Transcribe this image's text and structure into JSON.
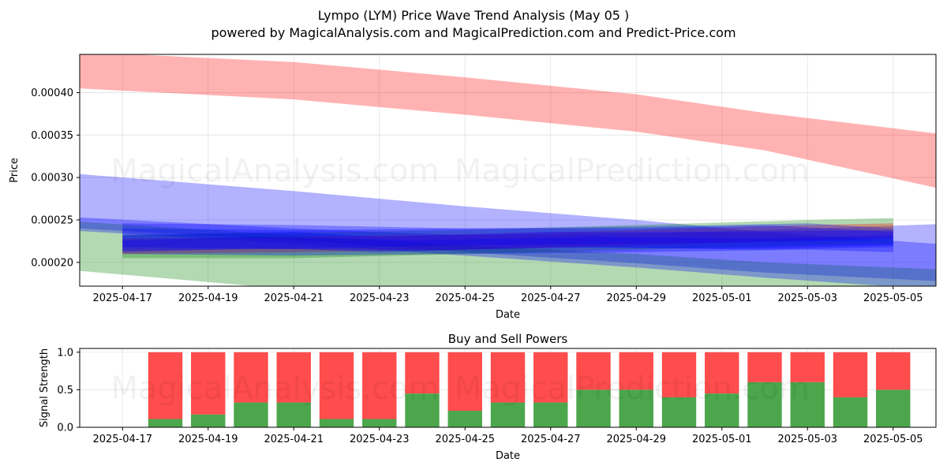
{
  "title_line1": "Lympo (LYM) Price Wave Trend Analysis (May 05 )",
  "title_line2": "powered by MagicalAnalysis.com and MagicalPrediction.com and Predict-Price.com",
  "watermarks": [
    "MagicalAnalysis.com",
    "MagicalPrediction.com"
  ],
  "colors": {
    "red": "#ff0000",
    "blue": "#0000ff",
    "green": "#008000",
    "buy": "#4ca64c",
    "sell": "#ff4c4c"
  },
  "chart_data": [
    {
      "type": "area",
      "name": "price-wave-chart",
      "xlabel": "Date",
      "ylabel": "Price",
      "xlim": [
        "2025-04-16",
        "2025-05-06"
      ],
      "ylim": [
        0.000172,
        0.000445
      ],
      "x_ticks": [
        "2025-04-17",
        "2025-04-19",
        "2025-04-21",
        "2025-04-23",
        "2025-04-25",
        "2025-04-27",
        "2025-04-29",
        "2025-05-01",
        "2025-05-03",
        "2025-05-05"
      ],
      "y_ticks": [
        "0.00020",
        "0.00025",
        "0.00030",
        "0.00035",
        "0.00040"
      ],
      "grid": true,
      "bands": [
        {
          "color": "red",
          "x": [
            "2025-04-16",
            "2025-04-21",
            "2025-04-25",
            "2025-04-29",
            "2025-05-02",
            "2025-05-06"
          ],
          "upper": [
            0.000448,
            0.000436,
            0.000418,
            0.000398,
            0.000376,
            0.000352
          ],
          "lower": [
            0.000405,
            0.000392,
            0.000374,
            0.000354,
            0.000332,
            0.000288
          ]
        },
        {
          "color": "blue",
          "x": [
            "2025-04-16",
            "2025-04-21",
            "2025-04-25",
            "2025-04-29",
            "2025-05-02",
            "2025-05-06"
          ],
          "upper": [
            0.000304,
            0.000284,
            0.000266,
            0.00025,
            0.000236,
            0.000222
          ],
          "lower": [
            0.00024,
            0.000226,
            0.000212,
            0.000199,
            0.000188,
            0.000178
          ]
        },
        {
          "color": "green",
          "x": [
            "2025-04-16",
            "2025-04-21",
            "2025-04-25",
            "2025-04-29",
            "2025-05-02",
            "2025-05-06"
          ],
          "upper": [
            0.000248,
            0.000232,
            0.00022,
            0.00021,
            0.0002,
            0.000192
          ],
          "lower": [
            0.00019,
            0.000168,
            0.00015,
            0.000135,
            0.000122,
            0.00011
          ]
        },
        {
          "color": "blue",
          "x": [
            "2025-04-16",
            "2025-04-21",
            "2025-04-25",
            "2025-04-29",
            "2025-05-02",
            "2025-05-06"
          ],
          "upper": [
            0.000253,
            0.00024,
            0.000232,
            0.000234,
            0.000238,
            0.000245
          ],
          "lower": [
            0.000237,
            0.000222,
            0.000208,
            0.000194,
            0.000182,
            0.000168
          ]
        },
        {
          "color": "green",
          "x": [
            "2025-04-17",
            "2025-04-21",
            "2025-04-25",
            "2025-04-29",
            "2025-05-03",
            "2025-05-05"
          ],
          "upper": [
            0.000232,
            0.000235,
            0.000238,
            0.000244,
            0.00025,
            0.000252
          ],
          "lower": [
            0.000205,
            0.000205,
            0.00021,
            0.000215,
            0.00022,
            0.000222
          ]
        },
        {
          "color": "red",
          "x": [
            "2025-04-17",
            "2025-04-21",
            "2025-04-25",
            "2025-04-29",
            "2025-05-03",
            "2025-05-05"
          ],
          "upper": [
            0.000228,
            0.00023,
            0.000233,
            0.000238,
            0.000244,
            0.000246
          ],
          "lower": [
            0.00021,
            0.000212,
            0.000215,
            0.00022,
            0.000226,
            0.000228
          ]
        },
        {
          "color": "blue",
          "x": [
            "2025-04-17",
            "2025-04-21",
            "2025-04-25",
            "2025-04-29",
            "2025-05-03",
            "2025-05-05"
          ],
          "upper": [
            0.00024,
            0.000238,
            0.00024,
            0.000242,
            0.000246,
            0.00024
          ],
          "lower": [
            0.00021,
            0.000208,
            0.00021,
            0.000212,
            0.000215,
            0.000212
          ]
        },
        {
          "color": "blue",
          "x": [
            "2025-04-17",
            "2025-04-21",
            "2025-04-23",
            "2025-04-27",
            "2025-05-01",
            "2025-05-05"
          ],
          "upper": [
            0.000232,
            0.000236,
            0.00023,
            0.000236,
            0.000236,
            0.000238
          ],
          "lower": [
            0.000214,
            0.000216,
            0.000212,
            0.000218,
            0.000216,
            0.00022
          ]
        },
        {
          "color": "blue",
          "x": [
            "2025-04-17",
            "2025-04-20",
            "2025-04-24",
            "2025-04-28",
            "2025-05-02",
            "2025-05-05"
          ],
          "upper": [
            0.000226,
            0.00023,
            0.000226,
            0.00023,
            0.000228,
            0.000232
          ],
          "lower": [
            0.000212,
            0.000216,
            0.000214,
            0.000218,
            0.000215,
            0.000218
          ]
        },
        {
          "color": "blue",
          "x": [
            "2025-04-17",
            "2025-04-21",
            "2025-04-25",
            "2025-04-29",
            "2025-05-02",
            "2025-05-05"
          ],
          "upper": [
            0.000246,
            0.000244,
            0.00024,
            0.00024,
            0.000244,
            0.000236
          ],
          "lower": [
            0.000218,
            0.000216,
            0.00022,
            0.000222,
            0.000224,
            0.000226
          ]
        }
      ]
    },
    {
      "type": "bar",
      "name": "buy-sell-powers-chart",
      "title": "Buy and Sell Powers",
      "xlabel": "Date",
      "ylabel": "Signal Strength",
      "xlim": [
        "2025-04-16",
        "2025-05-06"
      ],
      "ylim": [
        0,
        1.05
      ],
      "x_ticks": [
        "2025-04-17",
        "2025-04-19",
        "2025-04-21",
        "2025-04-23",
        "2025-04-25",
        "2025-04-27",
        "2025-04-29",
        "2025-05-01",
        "2025-05-03",
        "2025-05-05"
      ],
      "y_ticks": [
        "0.0",
        "0.5",
        "1.0"
      ],
      "grid": true,
      "categories": [
        "2025-04-18",
        "2025-04-19",
        "2025-04-20",
        "2025-04-21",
        "2025-04-22",
        "2025-04-23",
        "2025-04-24",
        "2025-04-25",
        "2025-04-26",
        "2025-04-27",
        "2025-04-28",
        "2025-04-29",
        "2025-04-30",
        "2025-05-01",
        "2025-05-02",
        "2025-05-03",
        "2025-05-04",
        "2025-05-05"
      ],
      "series": [
        {
          "color": "buy",
          "values": [
            0.11,
            0.17,
            0.33,
            0.33,
            0.11,
            0.11,
            0.45,
            0.22,
            0.33,
            0.33,
            0.5,
            0.5,
            0.4,
            0.45,
            0.6,
            0.6,
            0.4,
            0.5
          ]
        },
        {
          "color": "sell",
          "values": [
            0.89,
            0.83,
            0.67,
            0.67,
            0.89,
            0.89,
            0.55,
            0.78,
            0.67,
            0.67,
            0.5,
            0.5,
            0.6,
            0.55,
            0.4,
            0.4,
            0.6,
            0.5
          ]
        }
      ]
    }
  ]
}
